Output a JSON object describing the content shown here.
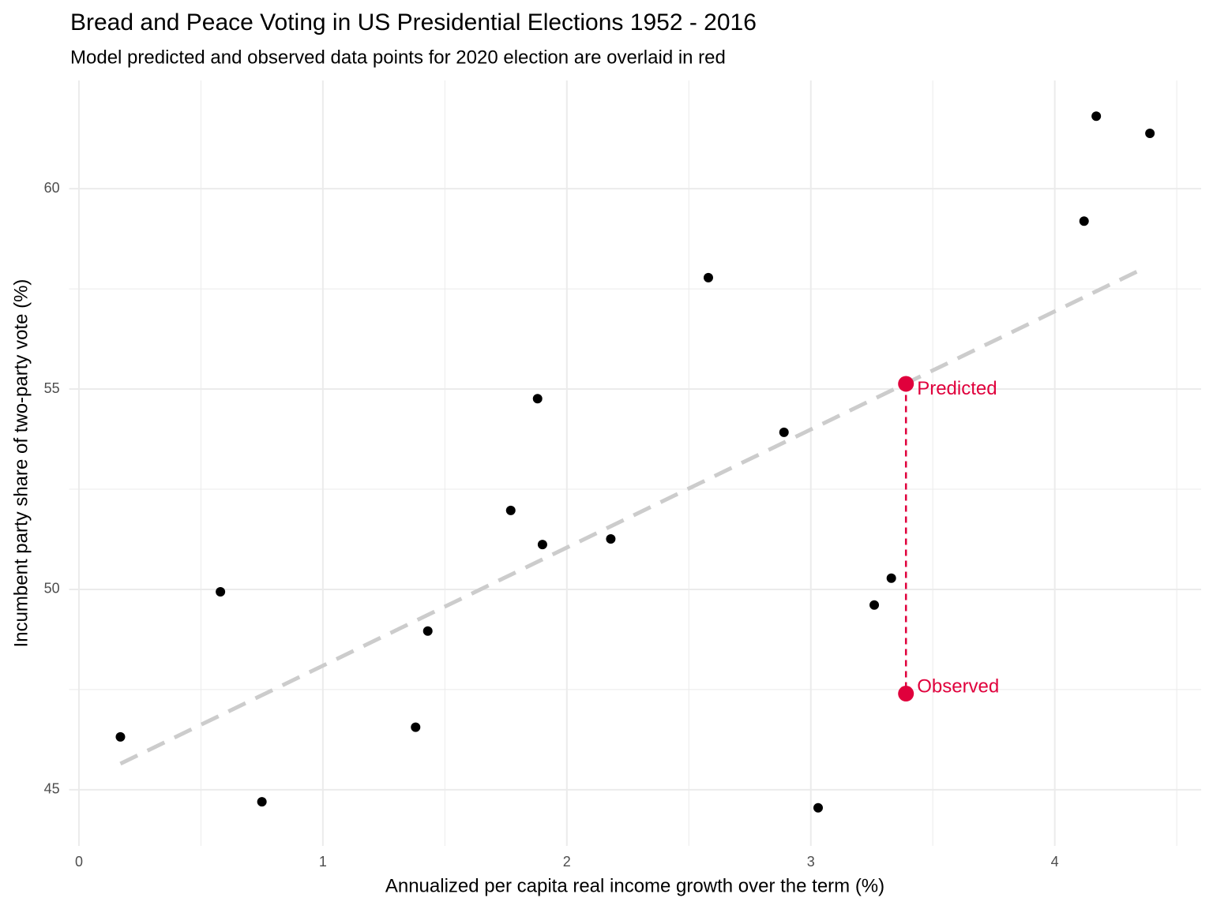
{
  "chart_data": {
    "type": "scatter",
    "title": "Bread and Peace Voting in US Presidential Elections 1952 - 2016",
    "subtitle": "Model predicted and observed data points for 2020 election are overlaid in red",
    "x_label": "Annualized per capita real income growth over the term (%)",
    "y_label": "Incumbent party share of two-party vote (%)",
    "x": [
      0.17,
      0.58,
      0.75,
      1.38,
      1.43,
      1.77,
      1.88,
      1.9,
      2.18,
      2.58,
      2.89,
      3.03,
      3.26,
      3.33,
      4.12,
      4.17,
      4.39
    ],
    "values": [
      46.32,
      49.94,
      44.7,
      46.56,
      48.96,
      51.97,
      54.76,
      51.12,
      51.26,
      57.78,
      53.92,
      44.55,
      49.61,
      50.28,
      59.19,
      61.81,
      61.38
    ],
    "color": "#000000",
    "fit": {
      "x": [
        0.17,
        4.35
      ],
      "values": [
        45.65,
        57.97
      ],
      "color": "#cccccc"
    },
    "highlight": {
      "color": "#e0003c",
      "x": 3.39,
      "points": [
        {
          "label": "Predicted",
          "value": 55.13
        },
        {
          "label": "Observed",
          "value": 47.4
        }
      ]
    },
    "xlim": [
      -0.04,
      4.6
    ],
    "ylim": [
      43.6,
      62.7
    ],
    "xticks": [
      0,
      1,
      2,
      3,
      4
    ],
    "yticks": [
      45,
      50,
      55,
      60
    ],
    "minor_xticks": [
      0.5,
      1.5,
      2.5,
      3.5,
      4.5
    ],
    "minor_yticks": [
      47.5,
      52.5,
      57.5
    ],
    "grid": true
  }
}
